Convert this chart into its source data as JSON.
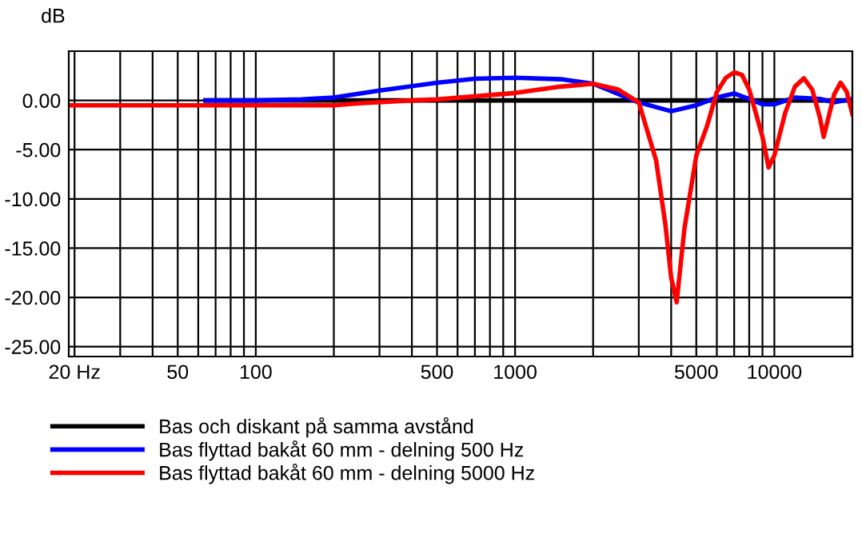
{
  "chart_data": {
    "type": "line",
    "ylabel": "dB",
    "log": "x",
    "grid": true,
    "legend": "bottom",
    "marker": "none",
    "line_style": "solid",
    "xlim": [
      19,
      20000
    ],
    "ylim": [
      -26,
      5
    ],
    "xticks": [
      {
        "value": 20,
        "label": "20 Hz"
      },
      50,
      100,
      500,
      1000,
      5000,
      10000
    ],
    "yticks": [
      {
        "value": -25,
        "label": "-25.00"
      },
      {
        "value": -20,
        "label": "-20.00"
      },
      {
        "value": -15,
        "label": "-15.00"
      },
      {
        "value": -10,
        "label": "-10.00"
      },
      {
        "value": -5,
        "label": "-5.00"
      },
      {
        "value": 0,
        "label": "0.00"
      }
    ],
    "series": [
      {
        "name": "Bas och diskant på samma avstånd",
        "color": "#000000",
        "x": [
          64,
          20000
        ],
        "values": [
          0,
          0
        ]
      },
      {
        "name": "Bas flyttad bakåt 60 mm - delning 500 Hz",
        "color": "#0000ff",
        "x": [
          64,
          100,
          150,
          200,
          300,
          500,
          700,
          1000,
          1500,
          2000,
          3000,
          4000,
          5000,
          6000,
          7000,
          8000,
          9000,
          10000,
          12000,
          15000,
          17000,
          20000
        ],
        "values": [
          0,
          0,
          0.1,
          0.3,
          1.0,
          1.8,
          2.2,
          2.3,
          2.15,
          1.7,
          -0.2,
          -1.1,
          -0.5,
          0.3,
          0.7,
          0.15,
          -0.4,
          -0.4,
          0.3,
          0.15,
          -0.2,
          0.15
        ]
      },
      {
        "name": "Bas flyttad bakåt 60 mm - delning 5000 Hz",
        "color": "#ff0000",
        "x": [
          19,
          200,
          250,
          400,
          500,
          1000,
          1500,
          2000,
          2500,
          3000,
          3500,
          3800,
          4000,
          4200,
          4500,
          5000,
          5500,
          6000,
          6500,
          7000,
          7500,
          8000,
          9000,
          9500,
          10000,
          11000,
          12000,
          13000,
          14000,
          15000,
          15500,
          17000,
          18000,
          19000,
          20000
        ],
        "values": [
          -0.5,
          -0.5,
          -0.3,
          0,
          0.1,
          0.75,
          1.4,
          1.7,
          1.1,
          -0.2,
          -6.1,
          -12.6,
          -18,
          -20.5,
          -13,
          -5.6,
          -2.6,
          0.85,
          2.3,
          2.85,
          2.6,
          1.1,
          -3.7,
          -6.8,
          -5.6,
          -1.3,
          1.4,
          2.25,
          1.1,
          -1.8,
          -3.7,
          0.6,
          1.8,
          0.9,
          -1.4
        ]
      }
    ]
  }
}
